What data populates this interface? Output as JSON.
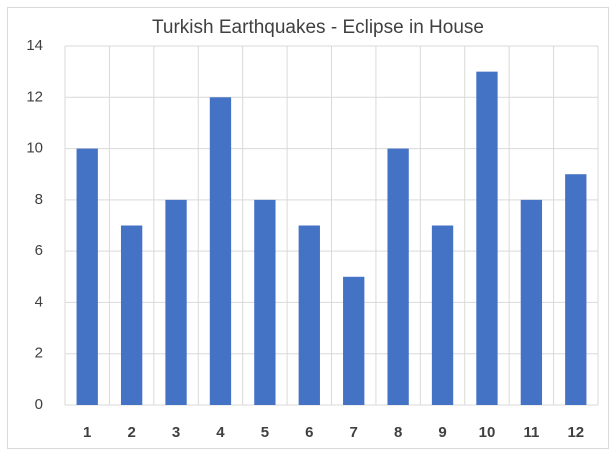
{
  "chart_data": {
    "type": "bar",
    "title": "Turkish Earthquakes - Eclipse in House",
    "categories": [
      "1",
      "2",
      "3",
      "4",
      "5",
      "6",
      "7",
      "8",
      "9",
      "10",
      "11",
      "12"
    ],
    "values": [
      10,
      7,
      8,
      12,
      8,
      7,
      5,
      10,
      7,
      13,
      8,
      9
    ],
    "color": "#4472c4",
    "ylim": [
      0,
      14
    ],
    "yticks": [
      0,
      2,
      4,
      6,
      8,
      10,
      12,
      14
    ],
    "grid": true
  }
}
